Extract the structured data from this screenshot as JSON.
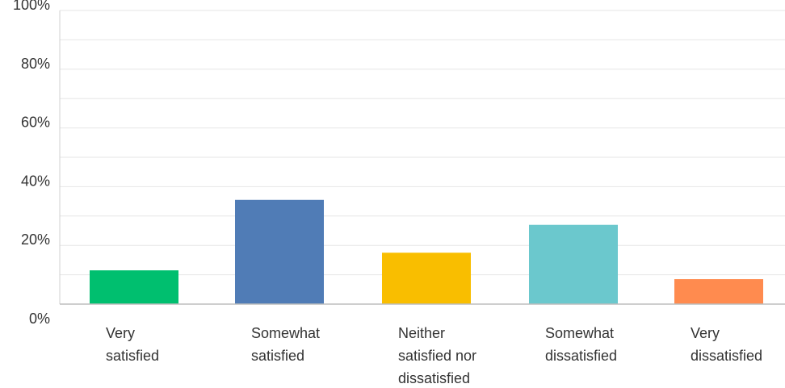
{
  "chart_data": {
    "type": "bar",
    "title": "",
    "xlabel": "",
    "ylabel": "",
    "ylim": [
      0,
      100
    ],
    "y_ticks": [
      "0%",
      "20%",
      "40%",
      "60%",
      "80%",
      "100%"
    ],
    "grid": true,
    "categories": [
      [
        "Very",
        "satisfied"
      ],
      [
        "Somewhat",
        "satisfied"
      ],
      [
        "Neither",
        "satisfied nor",
        "dissatisfied"
      ],
      [
        "Somewhat",
        "dissatisfied"
      ],
      [
        "Very",
        "dissatisfied"
      ]
    ],
    "values": [
      11.5,
      35.5,
      17.5,
      27,
      8.5
    ],
    "colors": [
      "#00bf6f",
      "#507cb6",
      "#f9be00",
      "#6bc8cd",
      "#ff8b4f"
    ]
  }
}
